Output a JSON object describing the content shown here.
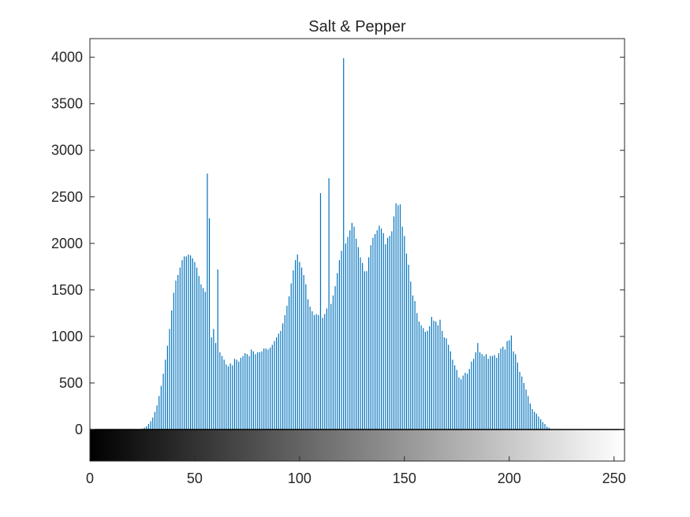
{
  "chart_data": {
    "type": "bar",
    "title": "Salt & Pepper",
    "xlabel": "",
    "ylabel": "",
    "xlim": [
      0,
      255
    ],
    "ylim": [
      0,
      4200
    ],
    "x_ticks": [
      0,
      50,
      100,
      150,
      200,
      250
    ],
    "y_ticks": [
      0,
      500,
      1000,
      1500,
      2000,
      2500,
      3000,
      3500,
      4000
    ],
    "grid": false,
    "legend": "none",
    "bar_color": "#0072bd",
    "colorbar": {
      "type": "grayscale",
      "range": [
        0,
        255
      ]
    },
    "x_start": 0,
    "values": [
      0,
      0,
      0,
      0,
      0,
      0,
      0,
      0,
      0,
      0,
      0,
      0,
      0,
      0,
      0,
      0,
      0,
      0,
      0,
      0,
      0,
      0,
      0,
      0,
      0,
      10,
      20,
      35,
      60,
      90,
      130,
      190,
      260,
      360,
      470,
      600,
      750,
      900,
      1080,
      1280,
      1470,
      1600,
      1660,
      1740,
      1820,
      1860,
      1860,
      1880,
      1870,
      1840,
      1800,
      1740,
      1650,
      1560,
      1520,
      1480,
      2750,
      2270,
      990,
      1080,
      930,
      1720,
      830,
      790,
      750,
      700,
      680,
      710,
      690,
      760,
      750,
      730,
      770,
      790,
      820,
      810,
      790,
      860,
      840,
      810,
      830,
      830,
      840,
      870,
      870,
      860,
      880,
      910,
      950,
      990,
      1030,
      1060,
      1140,
      1230,
      1330,
      1430,
      1570,
      1710,
      1820,
      1880,
      1800,
      1740,
      1660,
      1560,
      1400,
      1320,
      1270,
      1230,
      1240,
      1230,
      2540,
      1200,
      1240,
      1300,
      2700,
      1350,
      1440,
      1540,
      1680,
      1820,
      1920,
      3990,
      2000,
      2070,
      2140,
      2220,
      2180,
      2050,
      1960,
      1850,
      1790,
      1700,
      1700,
      1850,
      1980,
      2060,
      2100,
      2140,
      2190,
      2160,
      2110,
      1990,
      2060,
      2080,
      2130,
      2290,
      2430,
      2410,
      2420,
      2180,
      2080,
      1890,
      1770,
      1590,
      1440,
      1380,
      1250,
      1160,
      1120,
      1090,
      1050,
      1060,
      1110,
      1210,
      1170,
      1160,
      1120,
      1180,
      1060,
      990,
      980,
      910,
      840,
      750,
      690,
      640,
      560,
      540,
      580,
      610,
      600,
      650,
      730,
      760,
      830,
      930,
      830,
      810,
      790,
      810,
      760,
      790,
      790,
      800,
      770,
      820,
      870,
      890,
      860,
      950,
      960,
      1010,
      840,
      810,
      720,
      620,
      570,
      500,
      430,
      360,
      280,
      220,
      190,
      170,
      140,
      110,
      80,
      60,
      30,
      20,
      0,
      0,
      0,
      0,
      0,
      0,
      0,
      0,
      0,
      0,
      0,
      0,
      0,
      0,
      0,
      0,
      0,
      0,
      0,
      0,
      0,
      0,
      0,
      0,
      0,
      0,
      0,
      0,
      0,
      0
    ]
  }
}
